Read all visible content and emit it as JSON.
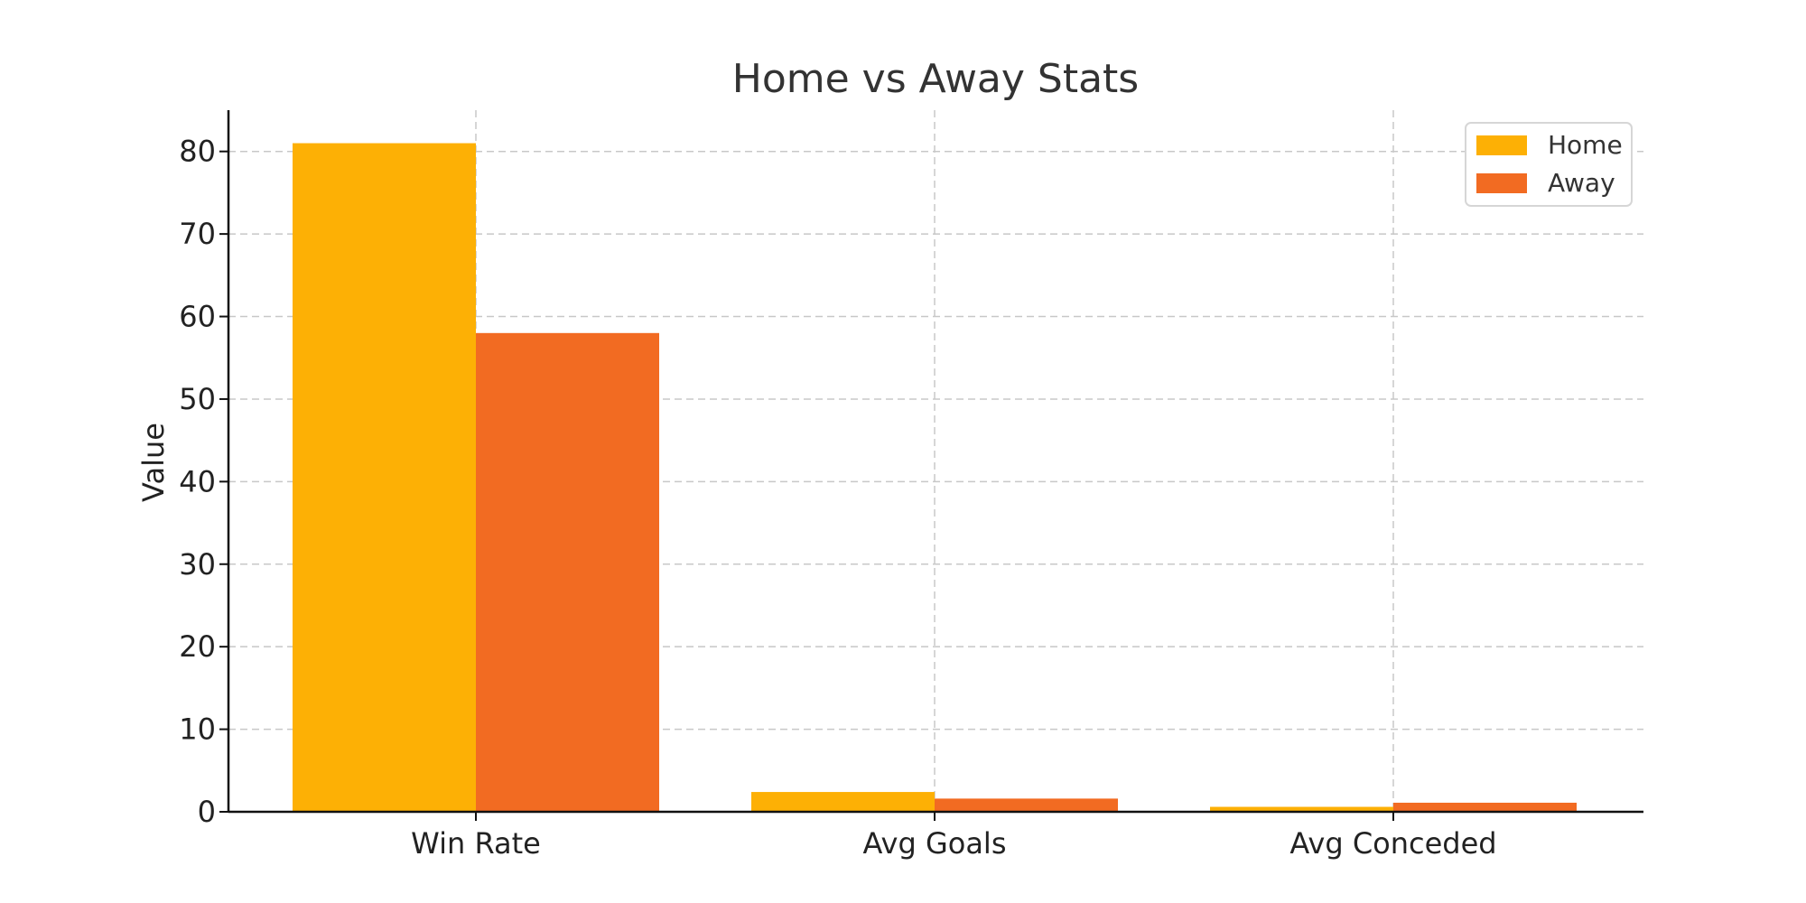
{
  "chart_data": {
    "type": "bar",
    "title": "Home vs Away Stats",
    "xlabel": "",
    "ylabel": "Value",
    "categories": [
      "Win Rate",
      "Avg Goals",
      "Avg Conceded"
    ],
    "series": [
      {
        "name": "Home",
        "values": [
          81,
          2.4,
          0.6
        ],
        "color": "#FDB005"
      },
      {
        "name": "Away",
        "values": [
          58,
          1.6,
          1.1
        ],
        "color": "#F26B22"
      }
    ],
    "ylim": [
      0,
      85
    ],
    "yticks": [
      0,
      10,
      20,
      30,
      40,
      50,
      60,
      70,
      80
    ],
    "grid": true,
    "legend_position": "top-right"
  }
}
